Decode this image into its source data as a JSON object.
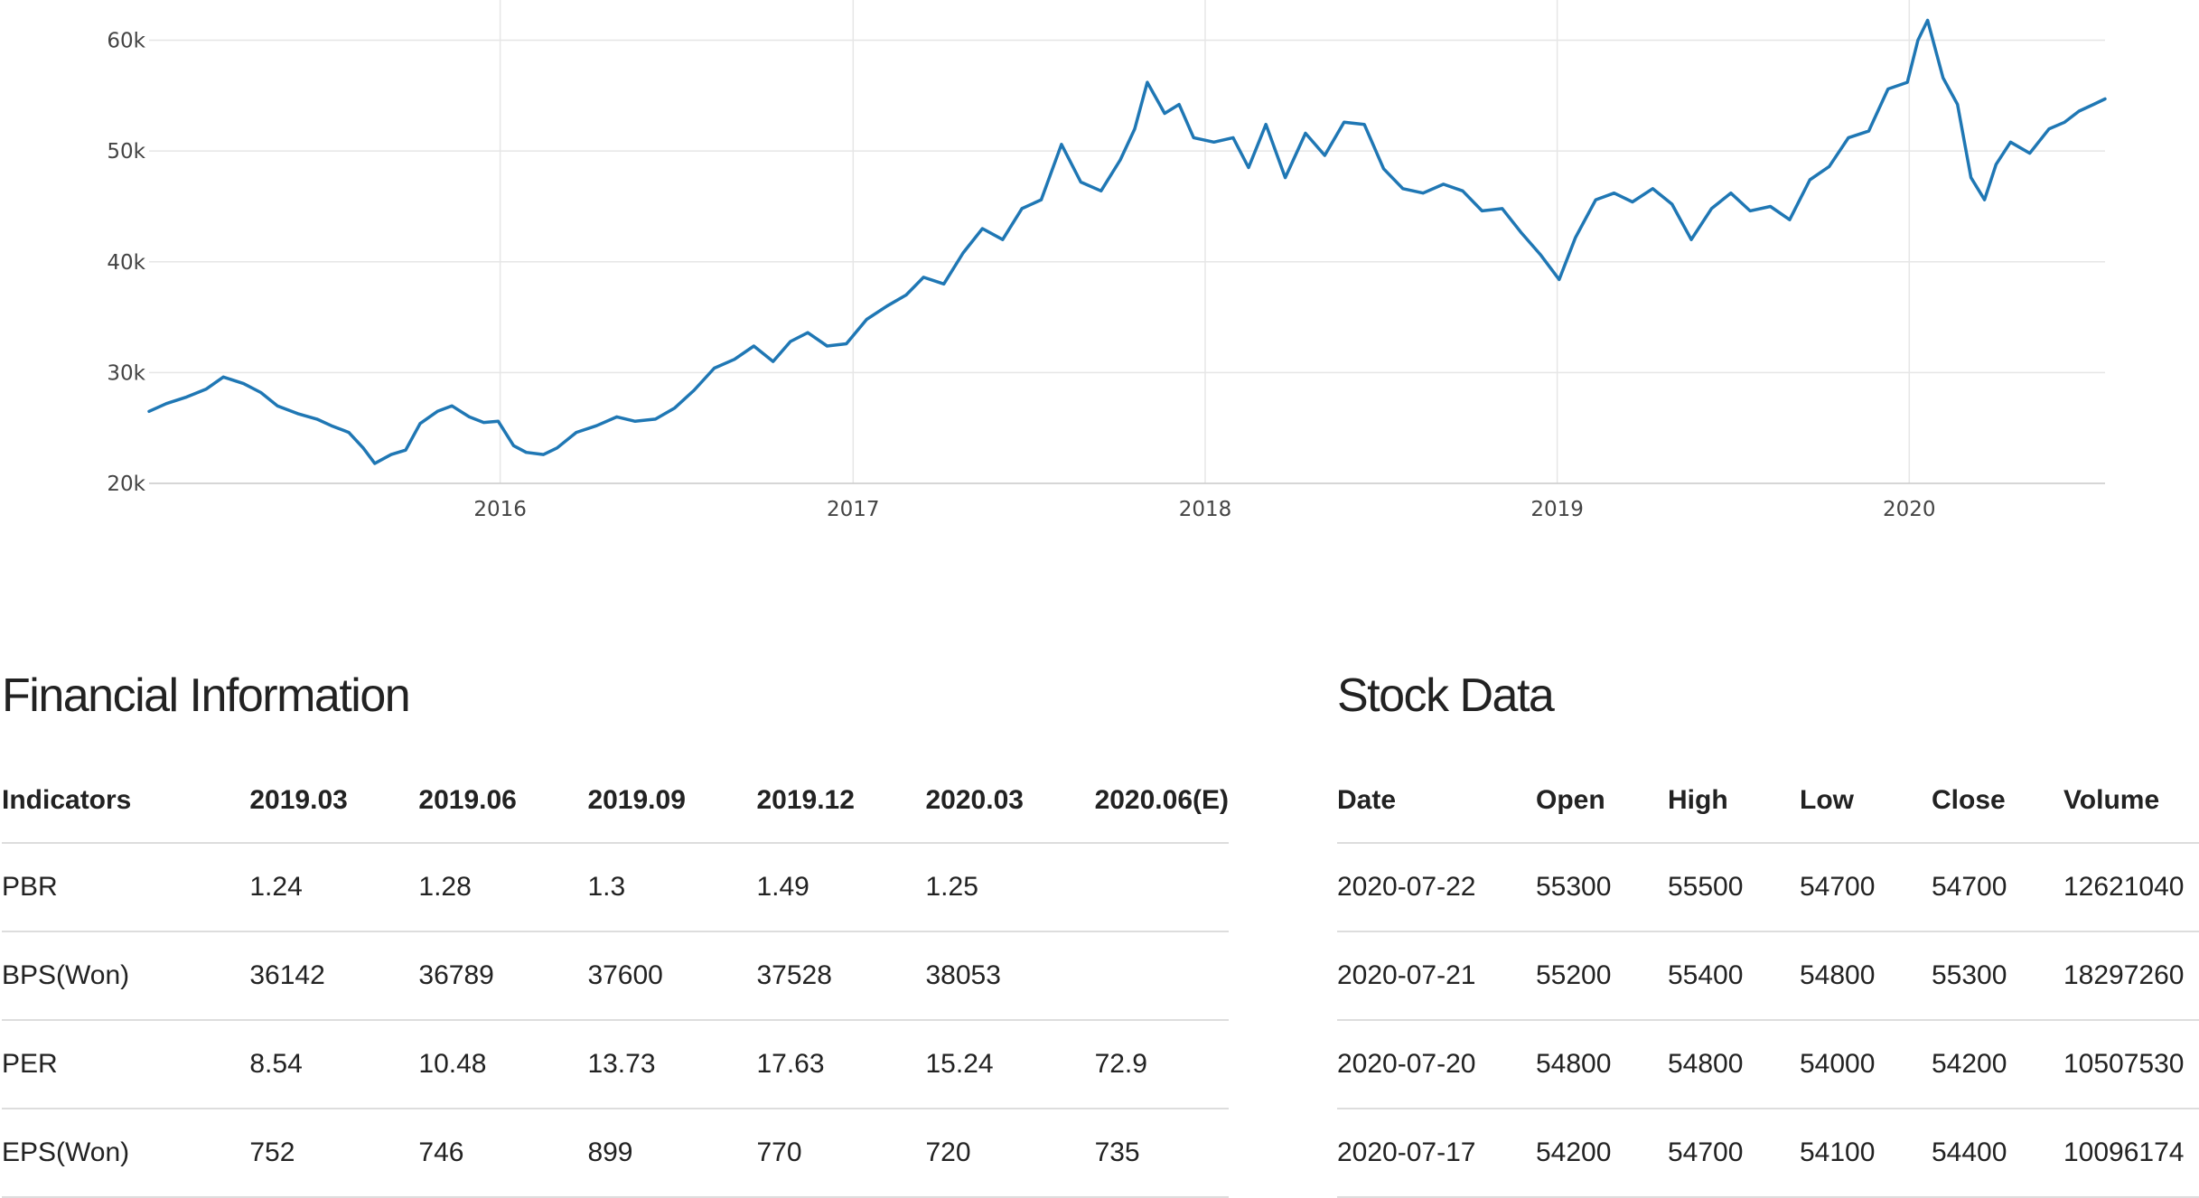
{
  "chart_data": {
    "type": "line",
    "title": "",
    "xlabel": "",
    "ylabel": "",
    "x_ticks": [
      "2016",
      "2017",
      "2018",
      "2019",
      "2020"
    ],
    "y_ticks": [
      "20k",
      "30k",
      "40k",
      "50k",
      "60k"
    ],
    "ylim": [
      20000,
      62000
    ],
    "xlim": [
      "2015-01-02",
      "2020-07-22"
    ],
    "grid": true,
    "line_color": "#1f77b4",
    "series": [
      {
        "x": [
          "2015-01-02",
          "2015-01-20",
          "2015-02-10",
          "2015-03-02",
          "2015-03-20",
          "2015-04-10",
          "2015-04-28",
          "2015-05-15",
          "2015-06-05",
          "2015-06-25",
          "2015-07-10",
          "2015-07-28",
          "2015-08-12",
          "2015-08-24",
          "2015-09-10",
          "2015-09-25",
          "2015-10-10",
          "2015-10-28",
          "2015-11-12",
          "2015-11-30",
          "2015-12-15",
          "2015-12-30",
          "2016-01-15",
          "2016-01-28",
          "2016-02-15",
          "2016-02-29",
          "2016-03-20",
          "2016-04-10",
          "2016-05-01",
          "2016-05-20",
          "2016-06-10",
          "2016-06-30",
          "2016-07-20",
          "2016-08-10",
          "2016-08-31",
          "2016-09-20",
          "2016-10-10",
          "2016-10-28",
          "2016-11-15",
          "2016-12-05",
          "2016-12-25",
          "2017-01-15",
          "2017-02-05",
          "2017-02-25",
          "2017-03-15",
          "2017-04-05",
          "2017-04-25",
          "2017-05-15",
          "2017-06-05",
          "2017-06-25",
          "2017-07-15",
          "2017-08-05",
          "2017-08-25",
          "2017-09-15",
          "2017-10-05",
          "2017-10-20",
          "2017-11-02",
          "2017-11-20",
          "2017-12-05",
          "2017-12-20",
          "2018-01-10",
          "2018-01-30",
          "2018-02-15",
          "2018-03-05",
          "2018-03-25",
          "2018-04-15",
          "2018-05-05",
          "2018-05-25",
          "2018-06-15",
          "2018-07-05",
          "2018-07-25",
          "2018-08-15",
          "2018-09-05",
          "2018-09-25",
          "2018-10-15",
          "2018-11-05",
          "2018-11-25",
          "2018-12-15",
          "2019-01-03",
          "2019-01-20",
          "2019-02-10",
          "2019-03-01",
          "2019-03-20",
          "2019-04-10",
          "2019-04-30",
          "2019-05-20",
          "2019-06-10",
          "2019-06-30",
          "2019-07-20",
          "2019-08-10",
          "2019-08-30",
          "2019-09-20",
          "2019-10-10",
          "2019-10-30",
          "2019-11-20",
          "2019-12-10",
          "2019-12-30",
          "2020-01-10",
          "2020-01-20",
          "2020-02-05",
          "2020-02-20",
          "2020-03-05",
          "2020-03-19",
          "2020-03-31",
          "2020-04-15",
          "2020-05-05",
          "2020-05-25",
          "2020-06-10",
          "2020-06-25",
          "2020-07-10",
          "2020-07-22"
        ],
        "y": [
          26500,
          27200,
          27800,
          28500,
          29600,
          29000,
          28200,
          27000,
          26300,
          25800,
          25200,
          24600,
          23200,
          21800,
          22600,
          23000,
          25400,
          26500,
          27000,
          26000,
          25500,
          25600,
          23400,
          22800,
          22600,
          23200,
          24600,
          25200,
          26000,
          25600,
          25800,
          26800,
          28400,
          30400,
          31200,
          32400,
          31000,
          32800,
          33600,
          32400,
          32600,
          34800,
          36000,
          37000,
          38600,
          38000,
          40800,
          43000,
          42000,
          44800,
          45600,
          50600,
          47200,
          46400,
          49200,
          52000,
          56200,
          53400,
          54200,
          51200,
          50800,
          51200,
          48500,
          52400,
          47600,
          51600,
          49600,
          52600,
          52400,
          48400,
          46600,
          46200,
          47000,
          46400,
          44600,
          44800,
          42600,
          40600,
          38400,
          42200,
          45600,
          46200,
          45400,
          46600,
          45200,
          42000,
          44800,
          46200,
          44600,
          45000,
          43800,
          47400,
          48600,
          51200,
          51800,
          55600,
          56200,
          60000,
          61800,
          56600,
          54200,
          47600,
          45600,
          48800,
          50800,
          49800,
          52000,
          52600,
          53600,
          54200,
          54700
        ]
      }
    ]
  },
  "financial": {
    "title": "Financial Information",
    "headers": [
      "Indicators",
      "2019.03",
      "2019.06",
      "2019.09",
      "2019.12",
      "2020.03",
      "2020.06(E)"
    ],
    "rows": [
      [
        "PBR",
        "1.24",
        "1.28",
        "1.3",
        "1.49",
        "1.25",
        ""
      ],
      [
        "BPS(Won)",
        "36142",
        "36789",
        "37600",
        "37528",
        "38053",
        ""
      ],
      [
        "PER",
        "8.54",
        "10.48",
        "13.73",
        "17.63",
        "15.24",
        "72.9"
      ],
      [
        "EPS(Won)",
        "752",
        "746",
        "899",
        "770",
        "720",
        "735"
      ]
    ]
  },
  "stock": {
    "title": "Stock Data",
    "headers": [
      "Date",
      "Open",
      "High",
      "Low",
      "Close",
      "Volume"
    ],
    "rows": [
      [
        "2020-07-22",
        "55300",
        "55500",
        "54700",
        "54700",
        "12621040"
      ],
      [
        "2020-07-21",
        "55200",
        "55400",
        "54800",
        "55300",
        "18297260"
      ],
      [
        "2020-07-20",
        "54800",
        "54800",
        "54000",
        "54200",
        "10507530"
      ],
      [
        "2020-07-17",
        "54200",
        "54700",
        "54100",
        "54400",
        "10096174"
      ]
    ]
  }
}
